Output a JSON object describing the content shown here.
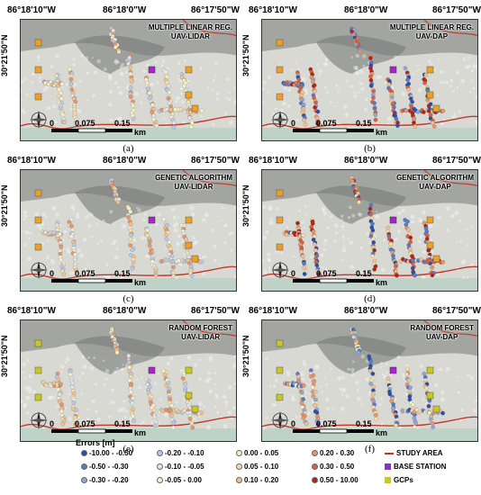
{
  "coords": {
    "lon_left": "86°18'10\"W",
    "lon_mid": "86°18'0\"W",
    "lon_right": "86°17'50\"W",
    "lat": "30°21'50\"N"
  },
  "scale": {
    "zero": "0",
    "mid": "0.075",
    "end": "0.15",
    "unit": "km"
  },
  "panels": [
    {
      "caption": "(a)",
      "method": "MULTIPLE LINEAR REG.",
      "source": "UAV-LIDAR"
    },
    {
      "caption": "(b)",
      "method": "MULTIPLE LINEAR REG.",
      "source": "UAV-DAP"
    },
    {
      "caption": "(c)",
      "method": "GENETIC ALGORITHM",
      "source": "UAV-LIDAR"
    },
    {
      "caption": "(d)",
      "method": "GENETIC ALGORITHM",
      "source": "UAV-DAP"
    },
    {
      "caption": "(e)",
      "method": "RANDOM FOREST",
      "source": "UAV-LIDAR"
    },
    {
      "caption": "(f)",
      "method": "RANDOM FOREST",
      "source": "UAV-DAP"
    }
  ],
  "legend": {
    "title": "Errors [m]",
    "classes": [
      {
        "label": "-10.00 - -0.50",
        "color": "#2b4ea8"
      },
      {
        "label": "-0.50 - -0.30",
        "color": "#5a7ac8"
      },
      {
        "label": "-0.30 - -0.20",
        "color": "#8fa6d8"
      },
      {
        "label": "-0.20 - -0.10",
        "color": "#b8c8e6"
      },
      {
        "label": "-0.10 - -0.05",
        "color": "#dde6ef"
      },
      {
        "label": "-0.05 - 0.00",
        "color": "#f1f1d8"
      },
      {
        "label": "0.00 - 0.05",
        "color": "#f6f0c6"
      },
      {
        "label": "0.05 - 0.10",
        "color": "#f3dfae"
      },
      {
        "label": "0.10 - 0.20",
        "color": "#f0c18f"
      },
      {
        "label": "0.20 - 0.30",
        "color": "#e8956a"
      },
      {
        "label": "0.30 - 0.50",
        "color": "#d9603f"
      },
      {
        "label": "0.50 - 10.00",
        "color": "#b32414"
      }
    ],
    "study_area": {
      "label": "STUDY AREA",
      "color": "#c0392b"
    },
    "base_station": {
      "label": "BASE STATION",
      "color": "#8a2be2"
    },
    "gcps": {
      "label": "GCPs",
      "color": "#c8c820"
    }
  },
  "colors": {
    "gcp_orange": "#f0a020",
    "gcp_yellow": "#c8c820",
    "base_station": "#b020d0"
  }
}
